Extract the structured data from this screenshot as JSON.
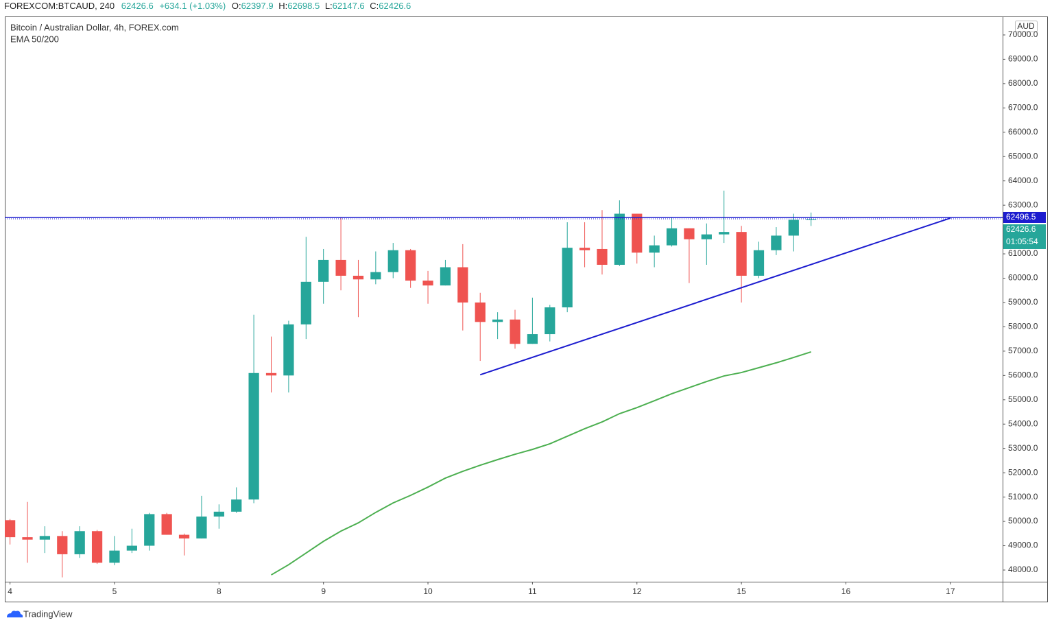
{
  "header": {
    "symbol": "FOREXCOM:BTCAUD, 240",
    "last": "62426.6",
    "change": "+634.1 (+1.03%)",
    "o": "O:",
    "o_val": "62397.9",
    "h": "H:",
    "h_val": "62698.5",
    "l": "L:",
    "l_val": "62147.6",
    "c": "C:",
    "c_val": "62426.6"
  },
  "footer": {
    "brand": "TradingView"
  },
  "chart_data": {
    "type": "candlestick",
    "title": "Bitcoin / Australian Dollar, 4h, FOREX.com",
    "currency": "AUD",
    "countdown": "01:05:54",
    "up_color": "#26a69a",
    "down_color": "#ef5350",
    "open": [
      50050,
      49350,
      49250,
      49400,
      48650,
      49600,
      48300,
      48800,
      49000,
      50300,
      49450,
      49300,
      50200,
      50400,
      50900,
      56100,
      56000,
      58100,
      59850,
      60750,
      60100,
      59950,
      60250,
      61150,
      59900,
      59700,
      60450,
      59000,
      58200,
      58300,
      57300,
      57700,
      58800,
      61250,
      61200,
      60550,
      62650,
      61050,
      61350,
      62050,
      61600,
      61800,
      61900,
      60100,
      61150,
      61750,
      62397.9
    ],
    "high": [
      50100,
      50800,
      49800,
      49600,
      49800,
      49650,
      49400,
      49700,
      50350,
      50350,
      49500,
      51050,
      50700,
      51400,
      58500,
      57600,
      58250,
      61700,
      61200,
      62500,
      60750,
      61100,
      61450,
      61200,
      60300,
      60750,
      61400,
      59400,
      58600,
      58700,
      59200,
      58900,
      62300,
      62300,
      62800,
      63200,
      62650,
      61750,
      62500,
      62050,
      62250,
      63600,
      62150,
      61500,
      62100,
      62650,
      62698.5
    ],
    "low": [
      49050,
      48300,
      48700,
      47700,
      48500,
      48250,
      48200,
      48700,
      48800,
      49450,
      48600,
      49300,
      49700,
      50350,
      50750,
      55300,
      55300,
      57500,
      58950,
      59500,
      58400,
      59750,
      60000,
      59600,
      58950,
      59700,
      57850,
      56600,
      57500,
      57100,
      57300,
      57400,
      58600,
      60450,
      60150,
      60500,
      60600,
      60450,
      61300,
      59800,
      60550,
      61450,
      59000,
      60000,
      60950,
      61100,
      62147.6
    ],
    "close": [
      49350,
      49250,
      49400,
      48650,
      49600,
      48300,
      48800,
      49000,
      50300,
      49450,
      49300,
      50200,
      50400,
      50900,
      56100,
      56000,
      58100,
      59850,
      60750,
      60100,
      59950,
      60250,
      61150,
      59900,
      59700,
      60450,
      59000,
      58200,
      58300,
      57300,
      57700,
      58800,
      61250,
      61150,
      60550,
      62650,
      61050,
      61350,
      62050,
      61600,
      61800,
      61900,
      60100,
      61150,
      61750,
      62400,
      62426.6
    ],
    "ema": {
      "name": "EMA 50/200",
      "color": "#4caf50",
      "values": [
        null,
        null,
        null,
        null,
        null,
        null,
        null,
        null,
        null,
        null,
        null,
        null,
        null,
        null,
        null,
        47800,
        48220,
        48700,
        49180,
        49600,
        49940,
        50370,
        50760,
        51070,
        51410,
        51780,
        52060,
        52310,
        52540,
        52760,
        52960,
        53190,
        53500,
        53810,
        54090,
        54430,
        54680,
        54960,
        55250,
        55500,
        55750,
        55980,
        56120,
        56320,
        56520,
        56740,
        56970
      ]
    },
    "trendline": {
      "x": [
        27,
        54
      ],
      "y": [
        56030,
        62470
      ],
      "color": "#1c1ccf"
    },
    "hline": {
      "value": 62496.5,
      "color": "#1c1ccf"
    },
    "xlim": [
      -0.3,
      57
    ],
    "xticks": [
      {
        "value": 0,
        "label": "4"
      },
      {
        "value": 6,
        "label": "5"
      },
      {
        "value": 12,
        "label": "8"
      },
      {
        "value": 18,
        "label": "9"
      },
      {
        "value": 24,
        "label": "10"
      },
      {
        "value": 30,
        "label": "11"
      },
      {
        "value": 36,
        "label": "12"
      },
      {
        "value": 42,
        "label": "15"
      },
      {
        "value": 48,
        "label": "16"
      },
      {
        "value": 54,
        "label": "17"
      }
    ],
    "ylim": [
      47520,
      70760
    ],
    "yticks": [
      {
        "value": 48000,
        "label": "48000.0"
      },
      {
        "value": 49000,
        "label": "49000.0"
      },
      {
        "value": 50000,
        "label": "50000.0"
      },
      {
        "value": 51000,
        "label": "51000.0"
      },
      {
        "value": 52000,
        "label": "52000.0"
      },
      {
        "value": 53000,
        "label": "53000.0"
      },
      {
        "value": 54000,
        "label": "54000.0"
      },
      {
        "value": 55000,
        "label": "55000.0"
      },
      {
        "value": 56000,
        "label": "56000.0"
      },
      {
        "value": 57000,
        "label": "57000.0"
      },
      {
        "value": 58000,
        "label": "58000.0"
      },
      {
        "value": 59000,
        "label": "59000.0"
      },
      {
        "value": 60000,
        "label": "60000.0"
      },
      {
        "value": 61000,
        "label": "61000.0"
      },
      {
        "value": 62000,
        "label": "62000.0"
      },
      {
        "value": 63000,
        "label": "63000.0"
      },
      {
        "value": 64000,
        "label": "64000.0"
      },
      {
        "value": 65000,
        "label": "65000.0"
      },
      {
        "value": 66000,
        "label": "66000.0"
      },
      {
        "value": 67000,
        "label": "67000.0"
      },
      {
        "value": 68000,
        "label": "68000.0"
      },
      {
        "value": 69000,
        "label": "69000.0"
      },
      {
        "value": 70000,
        "label": "70000.0"
      }
    ]
  }
}
